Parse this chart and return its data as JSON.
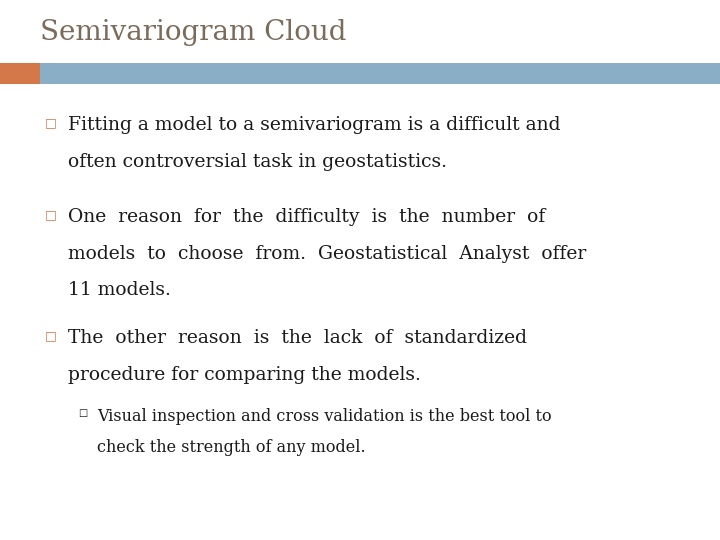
{
  "title": "Semivariogram Cloud",
  "title_color": "#7B6B5A",
  "title_fontsize": 20,
  "bg_color": "#FFFFFF",
  "bar_orange": "#D4784A",
  "bar_blue": "#8AAEC5",
  "bullet_color": "#D4784A",
  "text_color": "#1a1a1a",
  "bullet_char": "□",
  "sub_bullet_char": "□",
  "bullet1_line1": "Fitting a model to a semivariogram is a difficult and",
  "bullet1_line2": "often controversial task in geostatistics.",
  "bullet2_line1": "One  reason  for  the  difficulty  is  the  number  of",
  "bullet2_line2": "models  to  choose  from.  Geostatistical  Analyst  offer",
  "bullet2_line3": "11 models.",
  "bullet3_line1": "The  other  reason  is  the  lack  of  standardized",
  "bullet3_line2": "procedure for comparing the models.",
  "sub1_line1": "Visual inspection and cross validation is the best tool to",
  "sub1_line2": "check the strength of any model.",
  "main_fontsize": 13.5,
  "sub_fontsize": 11.5
}
